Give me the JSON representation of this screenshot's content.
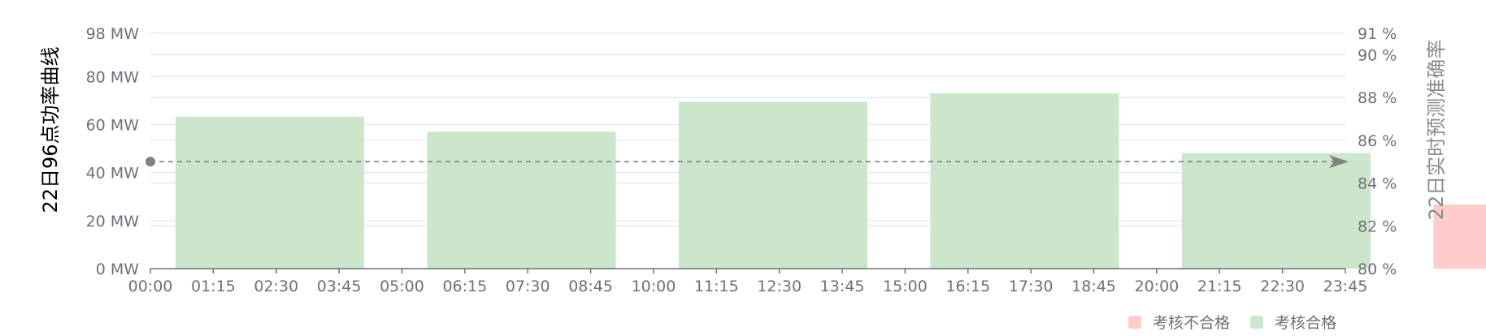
{
  "chart_data": {
    "type": "bar",
    "x_ticks": [
      "00:00",
      "01:15",
      "02:30",
      "03:45",
      "05:00",
      "06:15",
      "07:30",
      "08:45",
      "10:00",
      "11:15",
      "12:30",
      "13:45",
      "15:00",
      "16:15",
      "17:30",
      "18:45",
      "20:00",
      "21:15",
      "22:30",
      "23:45"
    ],
    "left_axis": {
      "title": "22日96点功率曲线",
      "unit": "MW",
      "ticks": [
        "98 MW",
        "80 MW",
        "60 MW",
        "40 MW",
        "20 MW",
        "0 MW"
      ],
      "tick_values": [
        98,
        80,
        60,
        40,
        20,
        0
      ],
      "range": [
        0,
        98
      ]
    },
    "right_axis": {
      "title": "22日实时预测准确率",
      "unit": "%",
      "ticks": [
        "91 %",
        "90 %",
        "88 %",
        "86 %",
        "84 %",
        "82 %",
        "80 %"
      ],
      "tick_values": [
        91,
        90,
        88,
        86,
        84,
        82,
        80
      ],
      "range": [
        80,
        91
      ]
    },
    "bars": [
      {
        "start": "00:30",
        "end": "04:15",
        "accuracy": 87.1,
        "status": "pass"
      },
      {
        "start": "05:30",
        "end": "09:15",
        "accuracy": 86.4,
        "status": "pass"
      },
      {
        "start": "10:30",
        "end": "14:15",
        "accuracy": 87.8,
        "status": "pass"
      },
      {
        "start": "15:30",
        "end": "19:15",
        "accuracy": 88.2,
        "status": "pass"
      },
      {
        "start": "20:30",
        "end": "24:15",
        "accuracy": 85.4,
        "status": "pass"
      },
      {
        "start": "25:30",
        "end": "29:15",
        "accuracy": 83.0,
        "status": "fail"
      }
    ],
    "threshold": {
      "value": 85.0,
      "axis": "right",
      "style": "dashed-arrow"
    },
    "legend": {
      "placement": "bottom-right",
      "items": [
        {
          "key": "fail",
          "label": "考核不合格",
          "color": "#ffcccc"
        },
        {
          "key": "pass",
          "label": "考核合格",
          "color": "#cce6cc"
        }
      ]
    },
    "colors": {
      "pass": "#cce6cc",
      "fail": "#ffcccc",
      "threshold": "#808080",
      "grid": "#e0e6f1",
      "axis": "#6e7079"
    }
  }
}
